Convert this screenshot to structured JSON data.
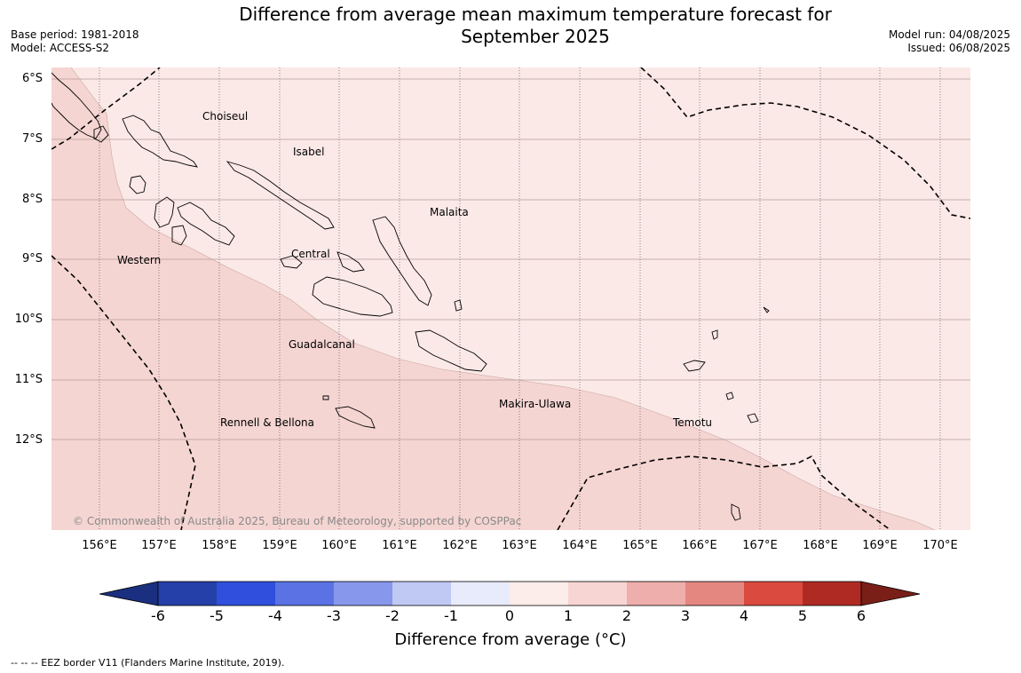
{
  "title": {
    "line1": "Difference from average mean maximum temperature forecast for",
    "line2": "September 2025"
  },
  "meta": {
    "base_period": "Base period: 1981-2018",
    "model": "Model: ACCESS-S2",
    "model_run": "Model run: 04/08/2025",
    "issued": "Issued: 06/08/2025"
  },
  "map": {
    "lon_range": [
      155.2,
      170.5
    ],
    "lat_range": [
      -13.5,
      -5.8
    ],
    "lat_ticks": [
      "6°S",
      "7°S",
      "8°S",
      "9°S",
      "10°S",
      "11°S",
      "12°S"
    ],
    "lon_ticks": [
      "156°E",
      "157°E",
      "158°E",
      "159°E",
      "160°E",
      "161°E",
      "162°E",
      "163°E",
      "164°E",
      "165°E",
      "166°E",
      "167°E",
      "168°E",
      "169°E",
      "170°E"
    ],
    "zones": [
      {
        "range": "0 to 1",
        "color": "#fbe9e7"
      },
      {
        "range": "1 to 2",
        "color": "#f5d5d2"
      }
    ],
    "provinces": [
      {
        "name": "Choiseul",
        "lon": 157.9,
        "lat": -6.7
      },
      {
        "name": "Isabel",
        "lon": 159.2,
        "lat": -7.2
      },
      {
        "name": "Malaita",
        "lon": 161.3,
        "lat": -8.2
      },
      {
        "name": "Western",
        "lon": 156.2,
        "lat": -9.0
      },
      {
        "name": "Central",
        "lon": 159.1,
        "lat": -8.9
      },
      {
        "name": "Guadalcanal",
        "lon": 159.7,
        "lat": -10.4
      },
      {
        "name": "Makira-Ulawa",
        "lon": 162.7,
        "lat": -11.4
      },
      {
        "name": "Rennell & Bellona",
        "lon": 158.0,
        "lat": -11.7
      },
      {
        "name": "Temotu",
        "lon": 165.6,
        "lat": -11.7
      }
    ],
    "copyright": "© Commonwealth of Australia 2025, Bureau of Meteorology, supported by COSPPac"
  },
  "colorbar": {
    "ticks": [
      "-6",
      "-5",
      "-4",
      "-3",
      "-2",
      "-1",
      "0",
      "1",
      "2",
      "3",
      "4",
      "5",
      "6"
    ],
    "colors": [
      "#2540a8",
      "#2f4fdc",
      "#5a72e4",
      "#8798ec",
      "#c0c9f4",
      "#e8ebfb",
      "#fcecea",
      "#f7d5d2",
      "#eeaeab",
      "#e58781",
      "#da4a3e",
      "#b02a24"
    ],
    "low_extend_color": "#1b2f80",
    "high_extend_color": "#7a1f18",
    "label": "Difference from average (°C)"
  },
  "footnote": "--  --  -- EEZ border V11 (Flanders Marine Institute, 2019)."
}
